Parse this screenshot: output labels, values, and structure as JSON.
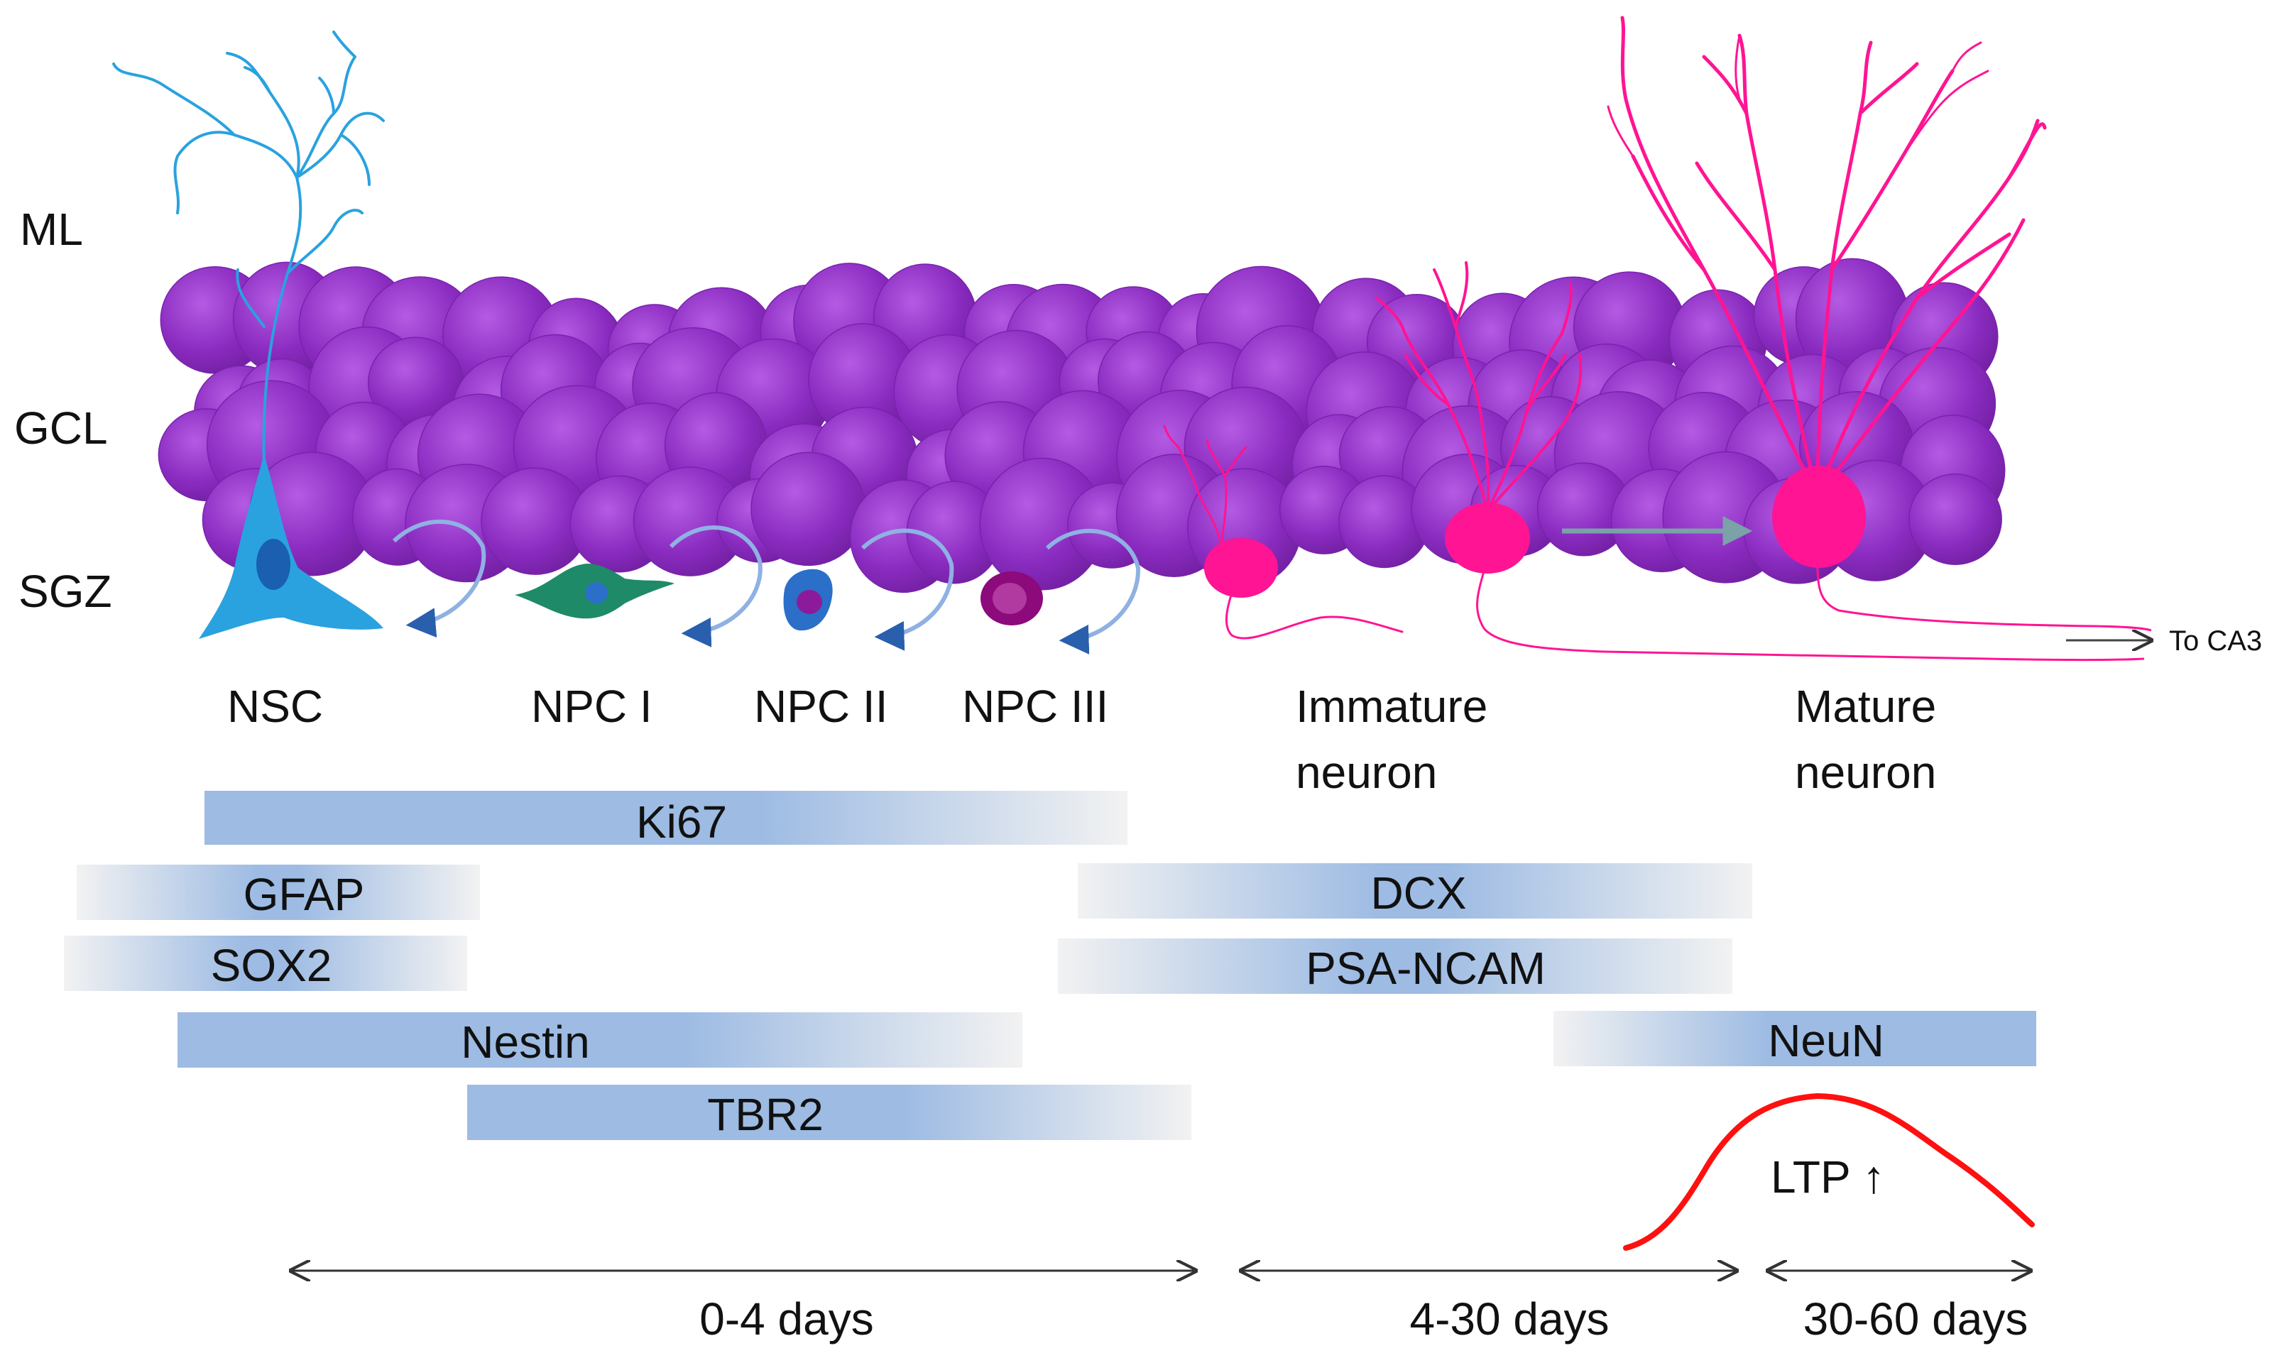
{
  "layers": {
    "ml": "ML",
    "gcl": "GCL",
    "sgz": "SGZ"
  },
  "cells": {
    "nsc": "NSC",
    "npc1": "NPC I",
    "npc2": "NPC II",
    "npc3": "NPC III",
    "immature_line1": "Immature",
    "immature_line2": "neuron",
    "mature_line1": "Mature",
    "mature_line2": "neuron"
  },
  "projection_label": "To CA3",
  "markers": {
    "ki67": "Ki67",
    "gfap": "GFAP",
    "sox2": "SOX2",
    "nestin": "Nestin",
    "tbr2": "TBR2",
    "dcx": "DCX",
    "psa_ncam": "PSA-NCAM",
    "neun": "NeuN"
  },
  "ltp_label": "LTP ↑",
  "timeline": {
    "phase1": "0-4 days",
    "phase2": "4-30 days",
    "phase3": "30-60 days"
  },
  "colors": {
    "granule_cell": "#8a2bc0",
    "nsc": "#2aa2df",
    "npc1": "#1f8a67",
    "npc2": "#2b6fc9",
    "npc3": "#8c0a7c",
    "neuron": "#ff1493",
    "marker_bar": "#9dbbe3",
    "ltp_curve": "#ff1010"
  }
}
